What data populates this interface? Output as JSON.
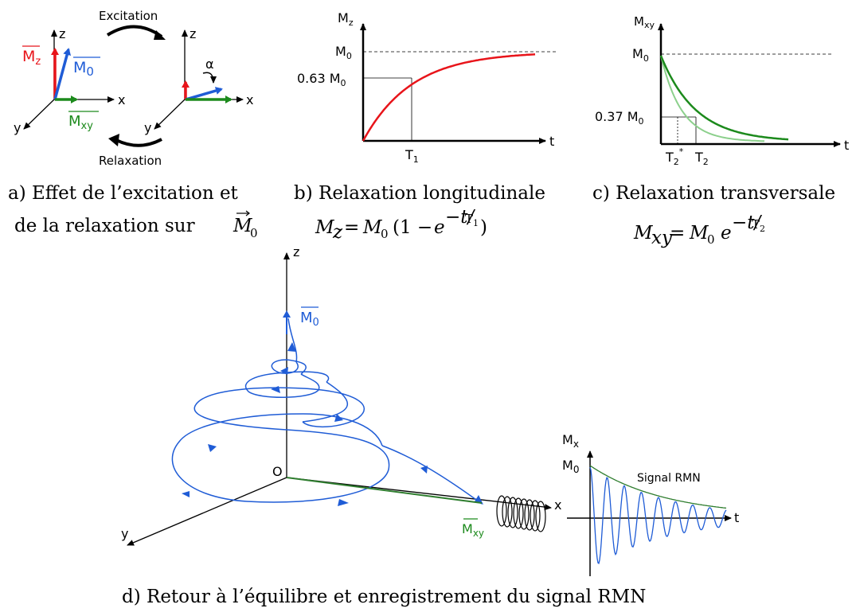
{
  "panel_a": {
    "caption_line1": "a) Effet de l’excitation et",
    "caption_line2": "de la relaxation sur",
    "caption_vec": "M",
    "caption_sub": "0",
    "excitation": "Excitation",
    "relaxation": "Relaxation",
    "axis_z": "z",
    "axis_x": "x",
    "axis_y": "y",
    "mz": "M",
    "mz_sub": "z",
    "m0": "M",
    "m0_sub": "0",
    "mxy": "M",
    "mxy_sub": "xy",
    "alpha": "α",
    "colors": {
      "mz": "#e8141a",
      "m0": "#1f5cd6",
      "mxy": "#1c8a1c"
    }
  },
  "panel_b": {
    "caption": "b) Relaxation longitudinale",
    "equation": "M_z = M_0 (1 − e^(−t/T1))",
    "y_label": "M",
    "y_label_sub": "z",
    "x_label": "t",
    "tick_m0": "M",
    "tick_m0_sub": "0",
    "tick_063": "0.63 M",
    "tick_063_sub": "0",
    "tick_t1": "T",
    "tick_t1_sub": "1",
    "curve_color": "#e8141a"
  },
  "panel_c": {
    "caption": "c) Relaxation transversale",
    "equation": "M_xy = M_0 e^(−t/T2)",
    "y_label": "M",
    "y_label_sub": "xy",
    "x_label": "t",
    "tick_m0": "M",
    "tick_m0_sub": "0",
    "tick_037": "0.37 M",
    "tick_037_sub": "0",
    "tick_t2star": "T",
    "tick_t2star_sub": "2",
    "tick_t2star_sup": "*",
    "tick_t2": "T",
    "tick_t2_sub": "2",
    "curve_color": "#1c8a1c",
    "curve_color_light": "#8cd08c"
  },
  "panel_d": {
    "caption": "d) Retour à l’équilibre et enregistrement du signal RMN",
    "axis_z": "z",
    "axis_x": "x",
    "axis_y": "y",
    "origin": "O",
    "m0": "M",
    "m0_sub": "0",
    "mxy": "M",
    "mxy_sub": "xy",
    "signal_y_label": "M",
    "signal_y_sub": "x",
    "signal_m0": "M",
    "signal_m0_sub": "0",
    "signal_t": "t",
    "signal_title": "Signal RMN",
    "spiral_color": "#1f5cd6",
    "envelope_color": "#2e7d2e"
  }
}
